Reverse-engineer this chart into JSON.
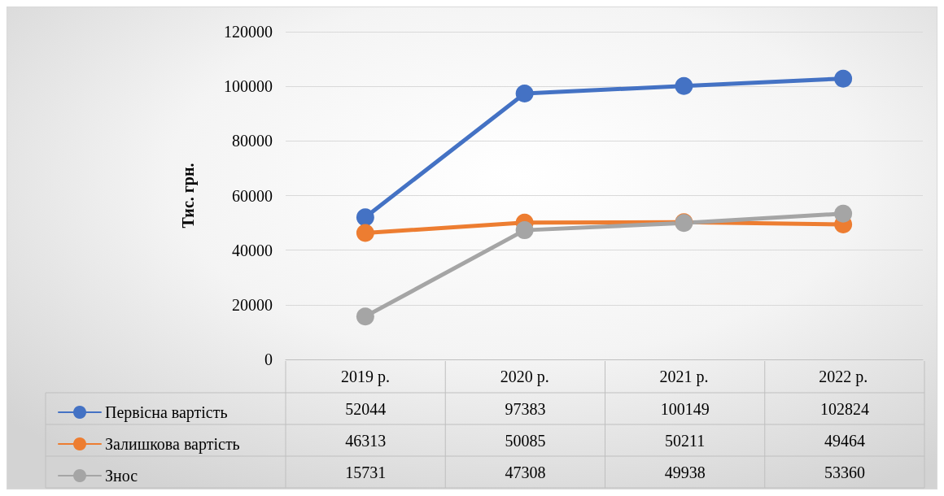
{
  "chart_data": {
    "type": "line",
    "ylabel": "Тис. грн.",
    "categories": [
      "2019 р.",
      "2020 р.",
      "2021 р.",
      "2022 р."
    ],
    "series": [
      {
        "name": "Первісна вартість",
        "color": "#4472c4",
        "values": [
          52044,
          97383,
          100149,
          102824
        ]
      },
      {
        "name": "Залишкова вартість",
        "color": "#ed7d31",
        "values": [
          46313,
          50085,
          50211,
          49464
        ]
      },
      {
        "name": "Знос",
        "color": "#a5a5a5",
        "values": [
          15731,
          47308,
          49938,
          53360
        ]
      }
    ],
    "ylim": [
      0,
      120000
    ],
    "yticks": [
      0,
      20000,
      40000,
      60000,
      80000,
      100000,
      120000
    ],
    "grid": "y",
    "legend": "bottom",
    "marker": "circle",
    "line_style": "solid",
    "data_labels": true
  }
}
